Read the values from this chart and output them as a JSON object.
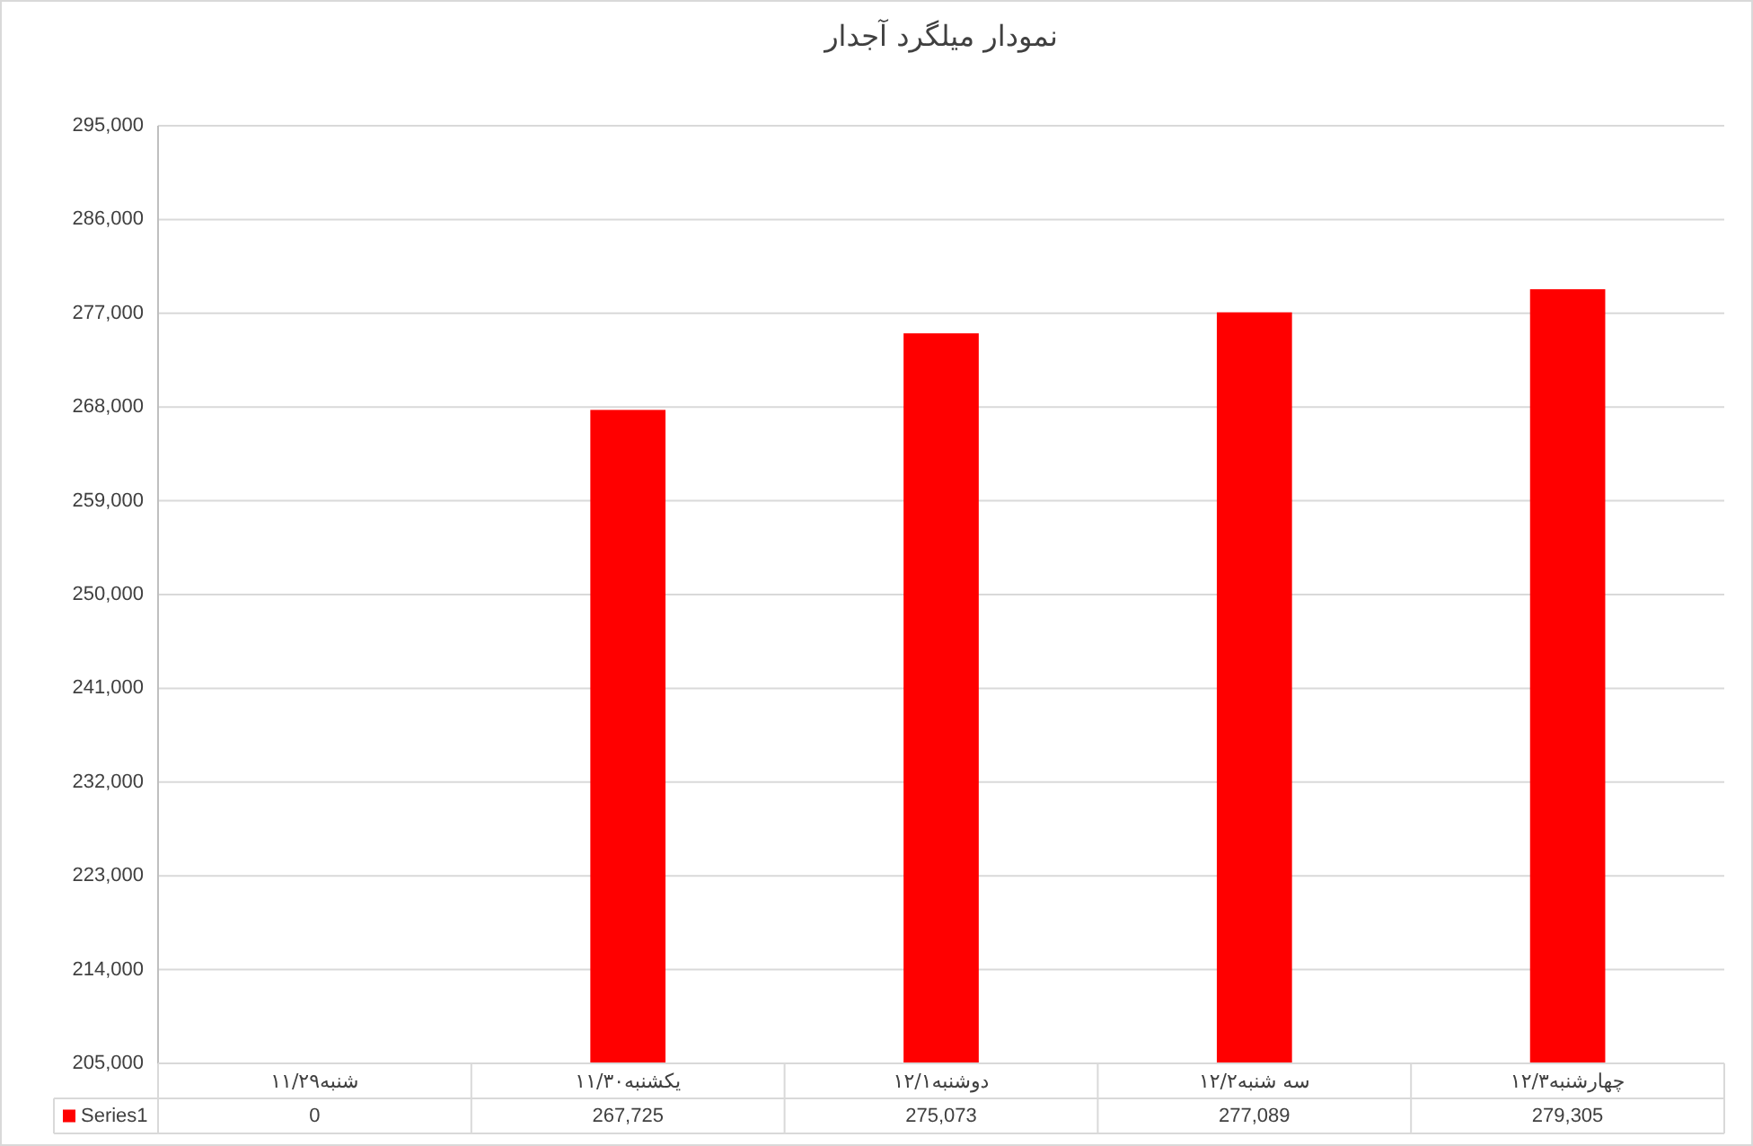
{
  "chart_data": {
    "type": "bar",
    "title": "نمودار میلگرد آجدار",
    "categories": [
      "شنبه۱۱/۲۹",
      "یکشنبه۱۱/۳۰",
      "دوشنبه۱۲/۱",
      "سه شنبه۱۲/۲",
      "چهارشنبه۱۲/۳"
    ],
    "series": [
      {
        "name": "Series1",
        "color": "#ff0000",
        "values": [
          null,
          267725,
          275073,
          277089,
          279305
        ],
        "value_labels": [
          "0",
          "267,725",
          "275,073",
          "277,089",
          "279,305"
        ]
      }
    ],
    "ylim": [
      205000,
      295000
    ],
    "yticks": [
      {
        "value": 205000,
        "label": "205,000"
      },
      {
        "value": 214000,
        "label": "214,000"
      },
      {
        "value": 223000,
        "label": "223,000"
      },
      {
        "value": 232000,
        "label": "232,000"
      },
      {
        "value": 241000,
        "label": "241,000"
      },
      {
        "value": 250000,
        "label": "250,000"
      },
      {
        "value": 259000,
        "label": "259,000"
      },
      {
        "value": 268000,
        "label": "268,000"
      },
      {
        "value": 277000,
        "label": "277,000"
      },
      {
        "value": 286000,
        "label": "286,000"
      },
      {
        "value": 295000,
        "label": "295,000"
      }
    ],
    "grid": "y",
    "legend": "bottom"
  }
}
